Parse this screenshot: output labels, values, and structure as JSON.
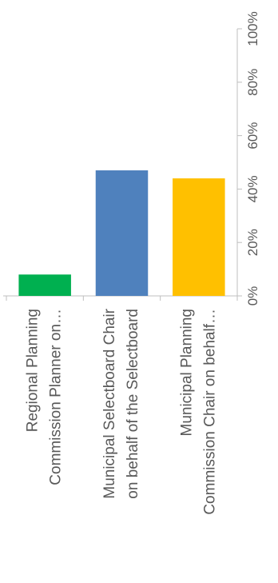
{
  "chart_data": {
    "type": "bar",
    "orientation": "vertical",
    "rotation": "90deg-clockwise",
    "title": "",
    "xlabel": "",
    "ylabel": "",
    "categories": [
      [
        "Regional Planning",
        "Commission Planner on…"
      ],
      [
        "Municipal Selectboard Chair",
        "on behalf of the Selectboard"
      ],
      [
        "Municipal Planning",
        "Commission Chair on behalf…"
      ]
    ],
    "values": [
      8,
      47,
      44
    ],
    "colors": [
      "#00B050",
      "#4F81BD",
      "#FFC000"
    ],
    "ylim": [
      0,
      100
    ],
    "yticks": [
      "0%",
      "20%",
      "40%",
      "60%",
      "80%",
      "100%"
    ],
    "ytick_values": [
      0,
      20,
      40,
      60,
      80,
      100
    ],
    "grid": false,
    "legend": "none"
  }
}
